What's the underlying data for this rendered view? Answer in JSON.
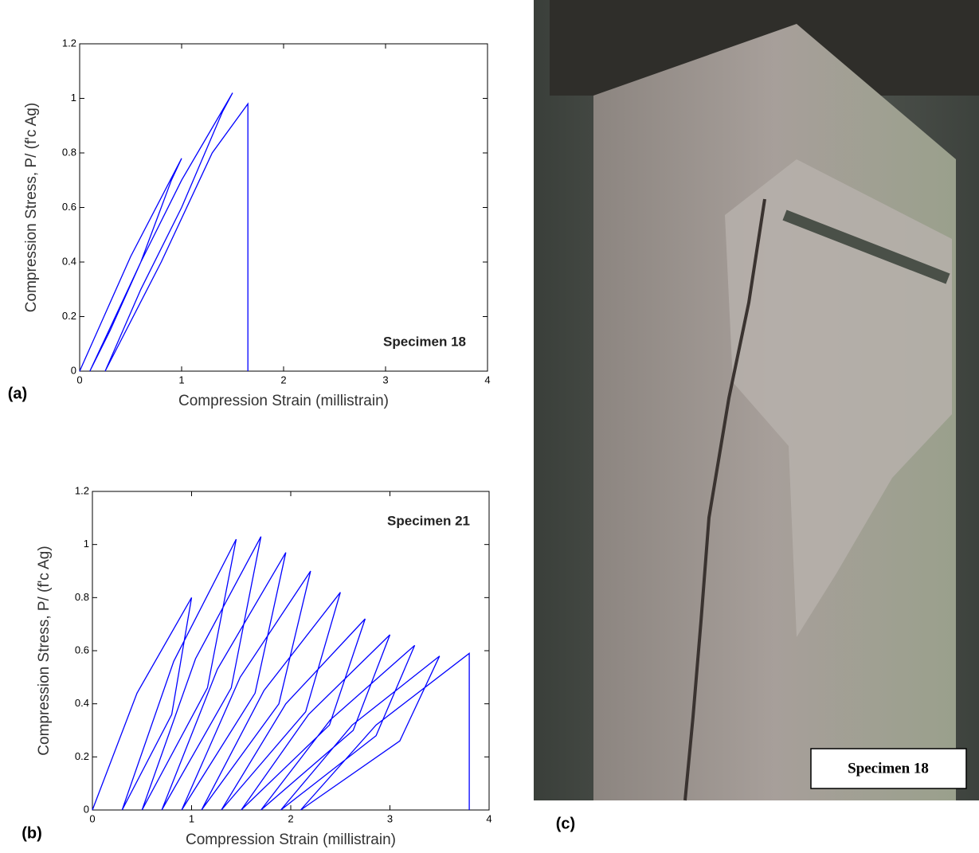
{
  "chart_data": [
    {
      "type": "line",
      "panel_label": "(a)",
      "annotation": "Specimen 18",
      "xlabel": "Compression Strain (millistrain)",
      "ylabel": "Compression Stress, P/ (f'c Ag)",
      "x": [
        0,
        0.5,
        1.0,
        0.9,
        0.6,
        0.3,
        0.1,
        0.6,
        1.0,
        1.5,
        1.4,
        1.0,
        0.6,
        0.25,
        0.8,
        1.3,
        1.65,
        1.65
      ],
      "values": [
        0,
        0.42,
        0.78,
        0.7,
        0.4,
        0.15,
        0,
        0.4,
        0.7,
        1.02,
        0.95,
        0.6,
        0.3,
        0,
        0.4,
        0.8,
        0.98,
        0
      ],
      "color": "#0000ff",
      "xlim": [
        0,
        4
      ],
      "ylim": [
        0,
        1.2
      ],
      "xticks": [
        0,
        1,
        2,
        3,
        4
      ],
      "yticks": [
        0,
        0.2,
        0.4,
        0.6,
        0.8,
        1,
        1.2
      ]
    },
    {
      "type": "line",
      "panel_label": "(b)",
      "annotation": "Specimen 21",
      "xlabel": "Compression Strain (millistrain)",
      "ylabel": "Compression Stress, P/ (f'c Ag)",
      "x": [
        0,
        0.45,
        1.0,
        0.8,
        0.3,
        0.82,
        1.45,
        1.16,
        0.5,
        1.04,
        1.7,
        1.4,
        0.7,
        1.26,
        1.95,
        1.64,
        0.9,
        1.49,
        2.2,
        1.88,
        1.1,
        1.73,
        2.5,
        2.15,
        1.3,
        1.95,
        2.75,
        2.39,
        1.5,
        2.18,
        3.0,
        2.63,
        1.7,
        2.4,
        3.25,
        2.86,
        1.9,
        2.62,
        3.5,
        3.1,
        2.1,
        2.86,
        3.8,
        3.8
      ],
      "values": [
        0,
        0.44,
        0.8,
        0.36,
        0,
        0.56,
        1.02,
        0.46,
        0,
        0.57,
        1.03,
        0.46,
        0,
        0.53,
        0.97,
        0.44,
        0,
        0.5,
        0.9,
        0.4,
        0,
        0.45,
        0.82,
        0.37,
        0,
        0.4,
        0.72,
        0.32,
        0,
        0.36,
        0.66,
        0.3,
        0,
        0.34,
        0.62,
        0.28,
        0,
        0.32,
        0.58,
        0.26,
        0,
        0.32,
        0.59,
        0
      ],
      "color": "#0000ff",
      "xlim": [
        0,
        4
      ],
      "ylim": [
        0,
        1.2
      ],
      "xticks": [
        0,
        1,
        2,
        3,
        4
      ],
      "yticks": [
        0,
        0.2,
        0.4,
        0.6,
        0.8,
        1,
        1.2
      ]
    }
  ],
  "photo": {
    "label": "(c)",
    "caption": "Specimen 18"
  }
}
